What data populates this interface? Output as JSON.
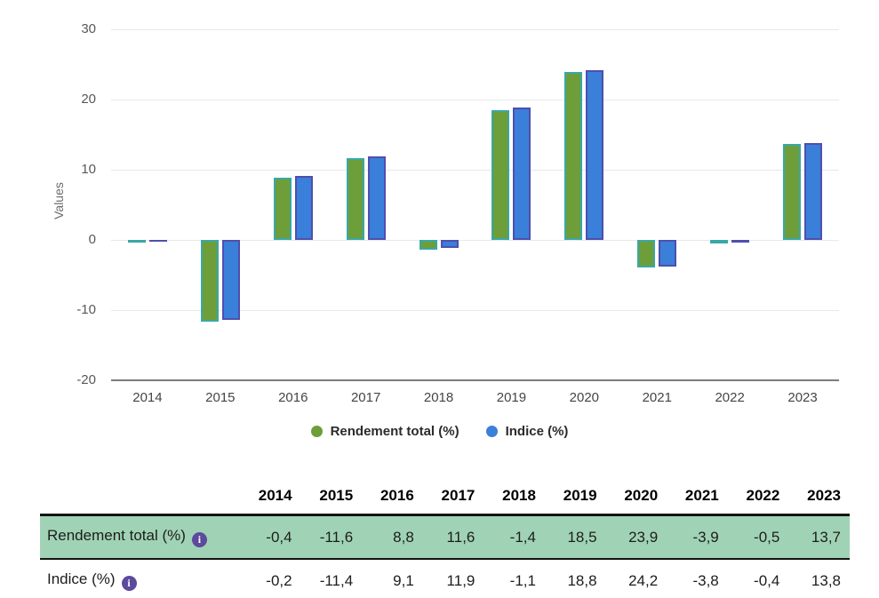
{
  "chart_data": {
    "type": "bar",
    "title": "",
    "xlabel": "",
    "ylabel": "Values",
    "ylim": [
      -20,
      30
    ],
    "y_ticks": [
      30,
      20,
      10,
      0,
      -10,
      -20
    ],
    "grid": true,
    "legend_position": "bottom",
    "categories": [
      "2014",
      "2015",
      "2016",
      "2017",
      "2018",
      "2019",
      "2020",
      "2021",
      "2022",
      "2023"
    ],
    "series": [
      {
        "name": "Rendement total (%)",
        "color": "#6d9e3a",
        "border_color": "#39a8a6",
        "values": [
          -0.4,
          -11.6,
          8.8,
          11.6,
          -1.4,
          18.5,
          23.9,
          -3.9,
          -0.5,
          13.7
        ]
      },
      {
        "name": "Indice (%)",
        "color": "#3a7fd9",
        "border_color": "#4f4fad",
        "values": [
          -0.2,
          -11.4,
          9.1,
          11.9,
          -1.1,
          18.8,
          24.2,
          -3.8,
          -0.4,
          13.8
        ]
      }
    ]
  },
  "table": {
    "years": [
      "2014",
      "2015",
      "2016",
      "2017",
      "2018",
      "2019",
      "2020",
      "2021",
      "2022",
      "2023"
    ],
    "rows": [
      {
        "label": "Rendement total (%)",
        "has_info_icon": true,
        "highlighted": true,
        "values": [
          "-0,4",
          "-11,6",
          "8,8",
          "11,6",
          "-1,4",
          "18,5",
          "23,9",
          "-3,9",
          "-0,5",
          "13,7"
        ]
      },
      {
        "label": "Indice (%)",
        "has_info_icon": true,
        "highlighted": false,
        "values": [
          "-0,2",
          "-11,4",
          "9,1",
          "11,9",
          "-1,1",
          "18,8",
          "24,2",
          "-3,8",
          "-0,4",
          "13,8"
        ]
      }
    ],
    "highlight_color": "#a0d3b5",
    "info_icon_color": "#5c4a9d",
    "info_icon_glyph": "i"
  }
}
